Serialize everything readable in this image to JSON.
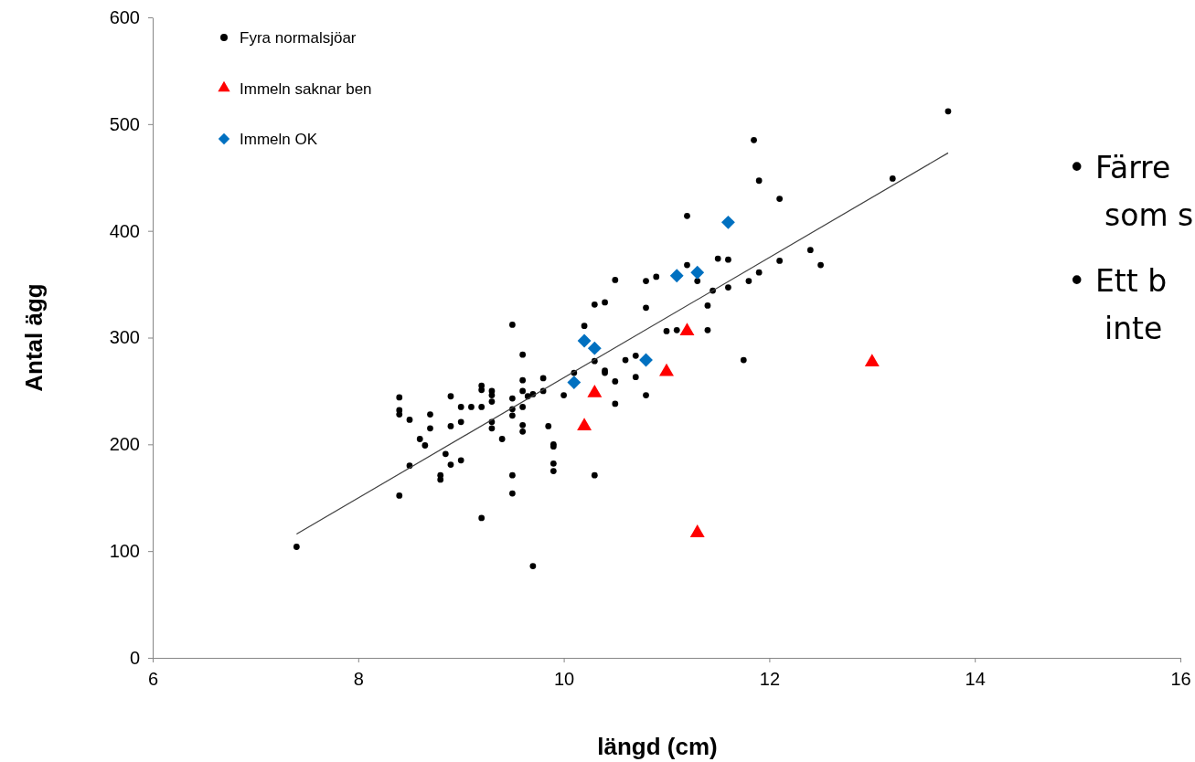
{
  "chart_data": {
    "type": "scatter",
    "xlabel": "längd (cm)",
    "ylabel": "Antal ägg",
    "xlim": [
      6,
      16
    ],
    "xticks": [
      6,
      8,
      10,
      12,
      14,
      16
    ],
    "ylim": [
      0,
      600
    ],
    "yticks": [
      0,
      100,
      200,
      300,
      400,
      500,
      600
    ],
    "grid": false,
    "legend": "top left",
    "annotations": [
      "• Färre",
      "som s",
      "• Ett b",
      "inte"
    ],
    "series": [
      {
        "name": "Fyra normalsjöar",
        "color": "#000000",
        "marker": "circle",
        "x": [
          7.4,
          8.4,
          8.4,
          8.4,
          8.4,
          8.5,
          8.5,
          8.6,
          8.65,
          8.7,
          8.7,
          8.85,
          8.8,
          8.8,
          8.9,
          8.9,
          8.9,
          9.0,
          9.0,
          9.0,
          9.1,
          9.2,
          9.2,
          9.2,
          9.2,
          9.3,
          9.3,
          9.3,
          9.3,
          9.3,
          9.4,
          9.5,
          9.5,
          9.5,
          9.5,
          9.5,
          9.5,
          9.6,
          9.6,
          9.6,
          9.6,
          9.6,
          9.6,
          9.65,
          9.7,
          9.7,
          9.8,
          9.8,
          9.85,
          9.9,
          9.9,
          9.9,
          9.9,
          10.0,
          10.1,
          10.2,
          10.3,
          10.3,
          10.3,
          10.4,
          10.4,
          10.4,
          10.5,
          10.5,
          10.5,
          10.6,
          10.7,
          10.7,
          10.8,
          10.8,
          10.8,
          10.9,
          11.0,
          11.1,
          11.2,
          11.2,
          11.3,
          11.4,
          11.4,
          11.45,
          11.5,
          11.6,
          11.6,
          11.75,
          11.8,
          11.85,
          11.9,
          11.9,
          12.1,
          12.1,
          12.4,
          12.5,
          13.2,
          13.74
        ],
        "values": [
          104,
          244,
          232,
          228,
          152,
          223,
          180,
          205,
          199,
          228,
          215,
          191,
          171,
          167,
          245,
          217,
          181,
          235,
          221,
          185,
          235,
          255,
          251,
          235,
          131,
          250,
          246,
          240,
          221,
          215,
          205,
          312,
          243,
          233,
          227,
          171,
          154,
          284,
          260,
          250,
          235,
          218,
          212,
          245,
          247,
          86,
          262,
          250,
          217,
          200,
          198,
          182,
          175,
          246,
          267,
          311,
          331,
          278,
          171,
          333,
          269,
          267,
          354,
          259,
          238,
          279,
          263,
          283,
          353,
          328,
          246,
          357,
          306,
          307,
          414,
          368,
          353,
          330,
          307,
          344,
          374,
          373,
          347,
          279,
          353,
          485,
          447,
          361,
          430,
          372,
          382,
          368,
          449,
          512
        ]
      },
      {
        "name": "Immeln saknar ben",
        "color": "#ff0000",
        "marker": "triangle",
        "x": [
          10.2,
          10.3,
          11.0,
          11.2,
          11.3,
          13.0
        ],
        "values": [
          217,
          248,
          268,
          306,
          117,
          277
        ]
      },
      {
        "name": "Immeln OK",
        "color": "#0070c0",
        "marker": "diamond",
        "x": [
          10.1,
          10.2,
          10.3,
          10.8,
          11.1,
          11.3,
          11.6
        ],
        "values": [
          258,
          297,
          290,
          279,
          358,
          361,
          408
        ]
      },
      {
        "type": "line",
        "color": "#404040",
        "marker": "none",
        "line_style": "solid",
        "x": [
          7.4,
          13.74
        ],
        "values": [
          116,
          473
        ]
      }
    ]
  }
}
